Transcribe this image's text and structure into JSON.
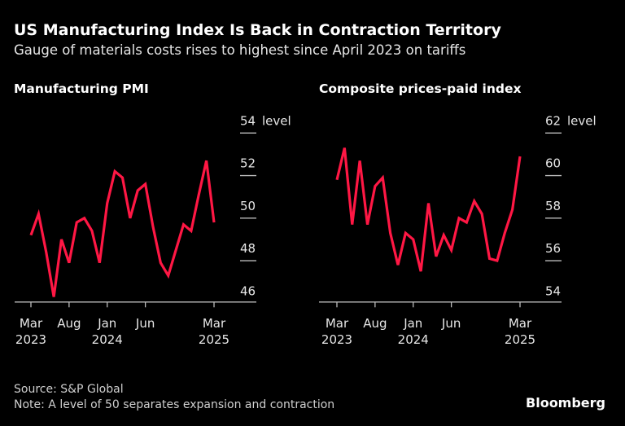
{
  "title": "US Manufacturing Index Is Back in Contraction Territory",
  "subtitle": "Gauge of materials costs rises to highest since April 2023 on tariffs",
  "source": "Source: S&P Global",
  "note": "Note: A level of 50 separates expansion and contraction",
  "brand": "Bloomberg",
  "colors": {
    "line": "#ff1744",
    "background": "#000000",
    "text": "#e6e6e6"
  },
  "chart_data": [
    {
      "type": "line",
      "title": "Manufacturing PMI",
      "unit_label": "level",
      "ylim": [
        46,
        54
      ],
      "yticks": [
        46,
        48,
        50,
        52,
        54
      ],
      "x_start": "2023-03",
      "x_end": "2025-03",
      "freq": "monthly",
      "xtick_labels": [
        {
          "month": "Mar",
          "year": "2023",
          "index": 0
        },
        {
          "month": "Aug",
          "year": "",
          "index": 5
        },
        {
          "month": "Jan",
          "year": "2024",
          "index": 10
        },
        {
          "month": "Jun",
          "year": "",
          "index": 15
        },
        {
          "month": "Mar",
          "year": "2025",
          "index": 24
        }
      ],
      "values": [
        49.2,
        50.2,
        48.4,
        46.3,
        49.0,
        47.9,
        49.8,
        50.0,
        49.4,
        47.9,
        50.7,
        52.2,
        51.9,
        50.0,
        51.3,
        51.6,
        49.6,
        47.9,
        47.3,
        48.5,
        49.7,
        49.4,
        51.1,
        52.7,
        49.8
      ]
    },
    {
      "type": "line",
      "title": "Composite prices-paid index",
      "unit_label": "level",
      "ylim": [
        54,
        62
      ],
      "yticks": [
        54,
        56,
        58,
        60,
        62
      ],
      "x_start": "2023-03",
      "x_end": "2025-03",
      "freq": "monthly",
      "xtick_labels": [
        {
          "month": "Mar",
          "year": "2023",
          "index": 0
        },
        {
          "month": "Aug",
          "year": "",
          "index": 5
        },
        {
          "month": "Jan",
          "year": "2024",
          "index": 10
        },
        {
          "month": "Jun",
          "year": "",
          "index": 15
        },
        {
          "month": "Mar",
          "year": "2025",
          "index": 24
        }
      ],
      "values": [
        59.8,
        61.3,
        57.7,
        60.7,
        57.7,
        59.5,
        59.9,
        57.3,
        55.8,
        57.3,
        57.0,
        55.5,
        58.7,
        56.2,
        57.2,
        56.5,
        58.0,
        57.8,
        58.8,
        58.2,
        56.1,
        56.0,
        57.3,
        58.4,
        60.9
      ]
    }
  ]
}
